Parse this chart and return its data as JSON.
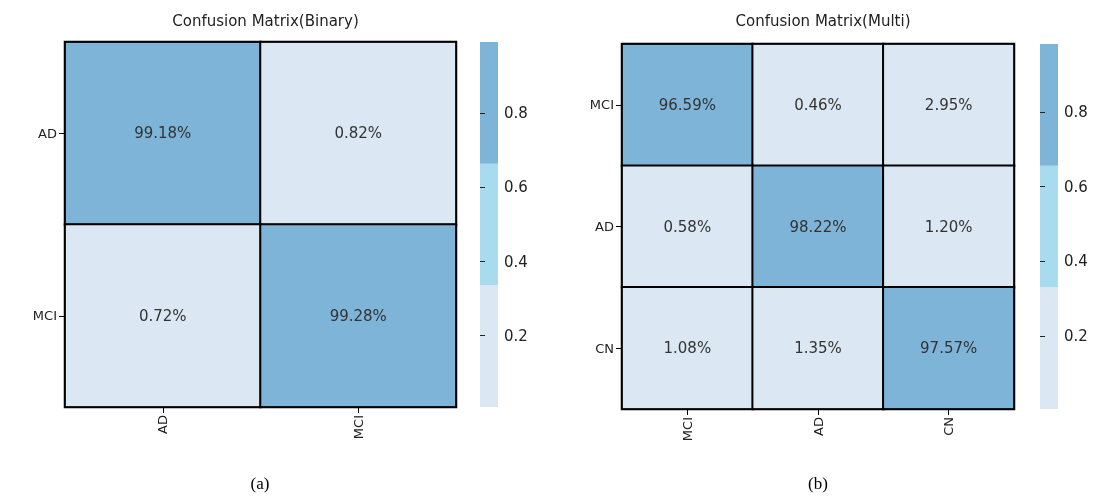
{
  "chart_data": [
    {
      "type": "heatmap",
      "title": "Confusion Matrix(Binary)",
      "categories": [
        "AD",
        "MCI"
      ],
      "y_categories": [
        "AD",
        "MCI"
      ],
      "cells": [
        [
          0.9918,
          0.0082
        ],
        [
          0.0072,
          0.9928
        ]
      ],
      "cell_labels": [
        [
          "99.18%",
          "0.82%"
        ],
        [
          "0.72%",
          "99.28%"
        ]
      ],
      "clim": [
        0.0072,
        0.9928
      ],
      "cticks": [
        0.2,
        0.4,
        0.6,
        0.8
      ],
      "colors": [
        "#dbe8f3",
        "#a9dbef",
        "#7db4d7"
      ],
      "annotations": [
        "(a)"
      ]
    },
    {
      "type": "heatmap",
      "title": "Confusion Matrix(Multi)",
      "categories": [
        "MCI",
        "AD",
        "CN"
      ],
      "y_categories": [
        "MCI",
        "AD",
        "CN"
      ],
      "cells": [
        [
          0.9659,
          0.0046,
          0.0295
        ],
        [
          0.0058,
          0.9822,
          0.012
        ],
        [
          0.0108,
          0.0135,
          0.9757
        ]
      ],
      "cell_labels": [
        [
          "96.59%",
          "0.46%",
          "2.95%"
        ],
        [
          "0.58%",
          "98.22%",
          "1.20%"
        ],
        [
          "1.08%",
          "1.35%",
          "97.57%"
        ]
      ],
      "clim": [
        0.0046,
        0.9822
      ],
      "cticks": [
        0.2,
        0.4,
        0.6,
        0.8
      ],
      "colors": [
        "#dbe8f3",
        "#a9dbef",
        "#7db4d7"
      ],
      "annotations": [
        "(b)"
      ]
    }
  ]
}
